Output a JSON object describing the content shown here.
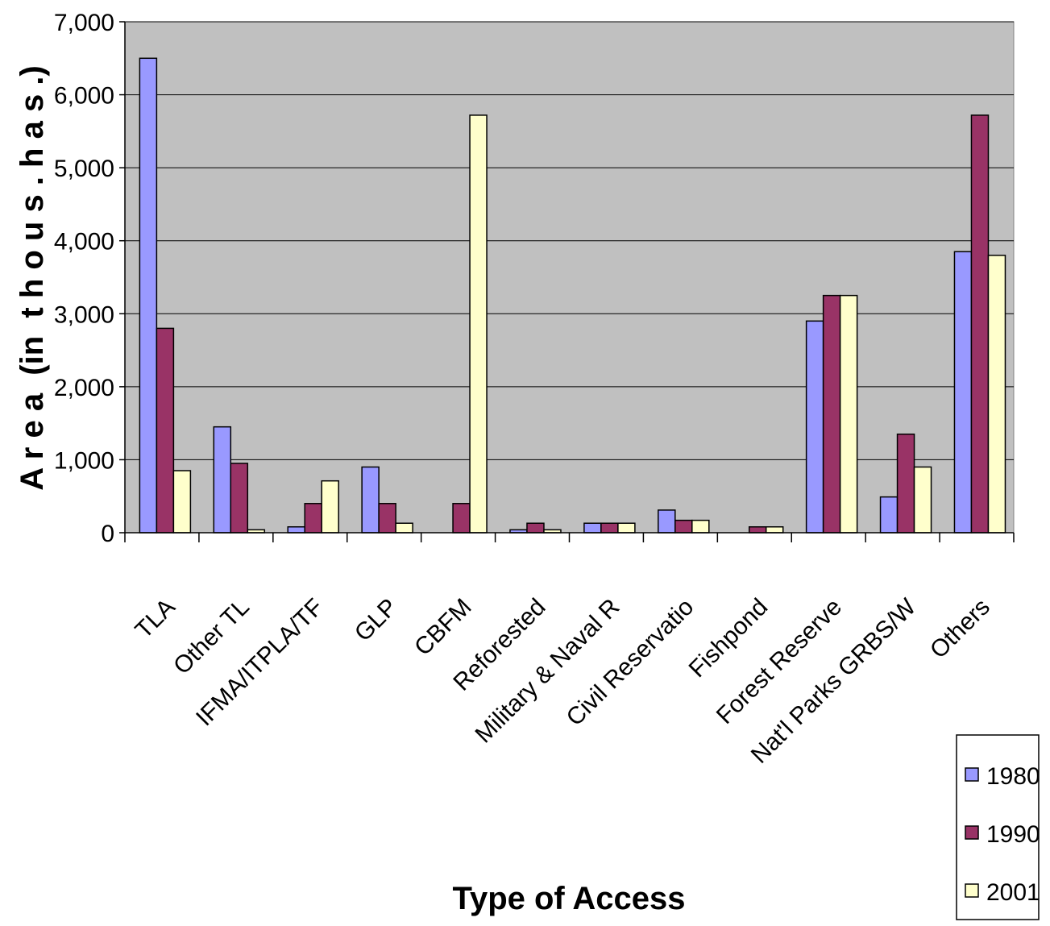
{
  "chart_data": {
    "type": "bar",
    "title": "",
    "xlabel": "Type of Access",
    "ylabel": "A r e a  (in  t h o u s . h a s .)",
    "ylim": [
      0,
      7000
    ],
    "yticks": [
      0,
      1000,
      2000,
      3000,
      4000,
      5000,
      6000,
      7000
    ],
    "ytick_labels": [
      "0",
      "1,000",
      "2,000",
      "3,000",
      "4,000",
      "5,000",
      "6,000",
      "7,000"
    ],
    "grid": true,
    "legend_position": "bottom-right",
    "categories": [
      "TLA",
      "Other TLA",
      "IFMA/ITPLA/TFL",
      "GLP",
      "CBFMA",
      "Reforested*",
      "Military & Naval R",
      "Civil Reservatio",
      "Fishponds",
      "Forest Reserve",
      "Nat'l Parks GRBS/W",
      "Others"
    ],
    "category_labels": [
      "TLA",
      "Other TL",
      "IFMA/ITPLA/TF",
      "GLP",
      "CBFM",
      "Reforested",
      "Military & Naval R",
      "Civil Reservatio",
      "Fishpond",
      "Forest Reserve",
      "Nat'l Parks GRBS/W",
      "Others"
    ],
    "series": [
      {
        "name": "1980",
        "color": "#9999ff",
        "values": [
          6500,
          1450,
          80,
          900,
          0,
          40,
          130,
          310,
          0,
          2900,
          490,
          3850
        ]
      },
      {
        "name": "1990",
        "color": "#993366",
        "values": [
          2800,
          950,
          400,
          400,
          400,
          130,
          130,
          170,
          80,
          3250,
          1350,
          5720
        ]
      },
      {
        "name": "2001",
        "color": "#ffffcc",
        "values": [
          850,
          40,
          710,
          130,
          5720,
          40,
          130,
          170,
          80,
          3250,
          900,
          3800
        ]
      }
    ]
  }
}
